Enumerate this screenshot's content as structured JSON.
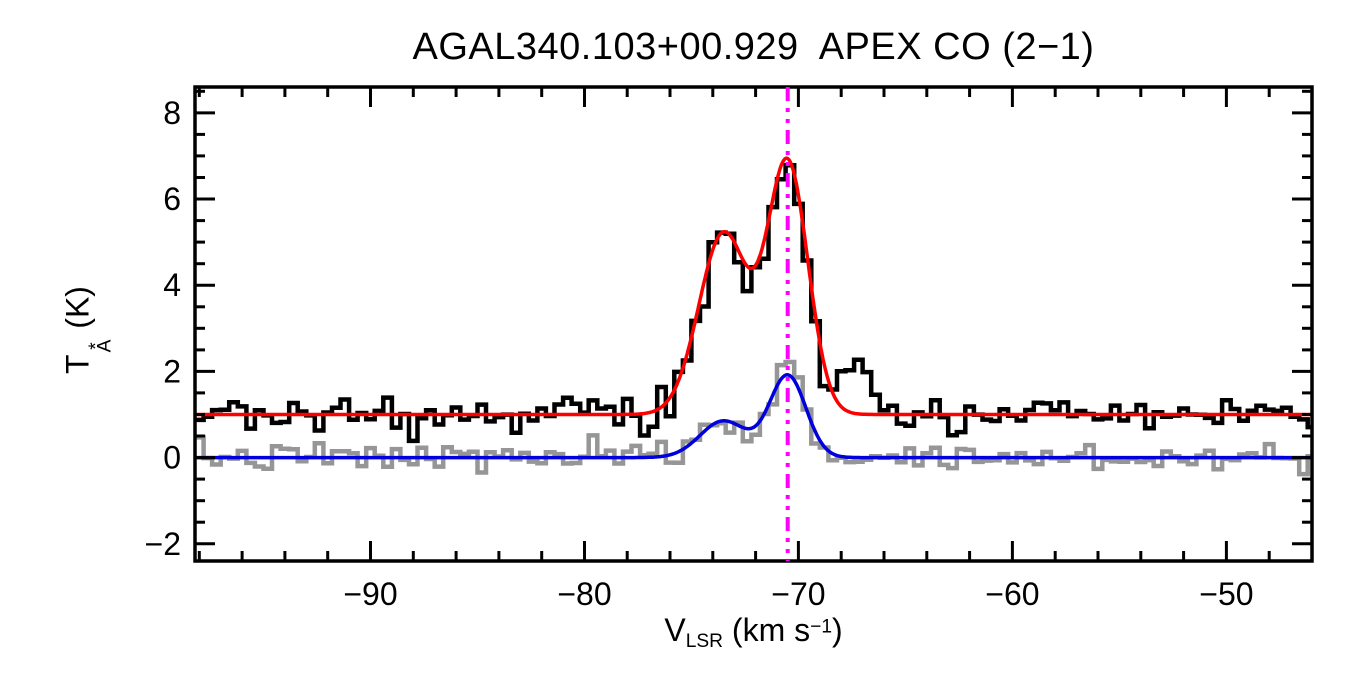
{
  "chart_data": {
    "type": "line",
    "title": "AGAL340.103+00.929  APEX CO (2−1)",
    "xlabel": "VLSR (km s−1)",
    "xlabel_parts": {
      "symbol": "V",
      "sub": "LSR",
      "unit_pre": " (km s",
      "sup": "−1",
      "unit_post": ")"
    },
    "ylabel": "TA* (K)",
    "ylabel_parts": {
      "symbol": "T",
      "sup": "*",
      "sub": "A",
      "unit": " (K)"
    },
    "xlim": [
      -98.2,
      -46.0
    ],
    "ylim": [
      -2.4,
      8.6
    ],
    "x_major_ticks": [
      -90,
      -80,
      -70,
      -60,
      -50
    ],
    "x_minor_step": 2,
    "y_major_ticks": [
      -2,
      0,
      2,
      4,
      6,
      8
    ],
    "y_minor_step": 0.5,
    "axis_color": "#000000",
    "marker_velocity": -70.5,
    "marker_color": "#ff00ff",
    "channel_width_kms": 0.4,
    "series": [
      {
        "name": "observed-spectrum",
        "style": "histogram",
        "color": "#000000",
        "line_width": 4.5,
        "baseline": 1.0,
        "noise_sigma": 0.22,
        "noise_seed": 20,
        "components": [
          {
            "center": -73.5,
            "amplitude": 4.2,
            "sigma": 1.1
          },
          {
            "center": -70.5,
            "amplitude": 5.8,
            "sigma": 0.9
          },
          {
            "center": -67.4,
            "amplitude": 1.05,
            "sigma": 0.8
          }
        ]
      },
      {
        "name": "smoothed-spectrum",
        "style": "histogram",
        "color": "#969696",
        "line_width": 4.5,
        "baseline": 0.0,
        "noise_sigma": 0.17,
        "noise_seed": 7,
        "components": [
          {
            "center": -73.5,
            "amplitude": 0.85,
            "sigma": 1.1
          },
          {
            "center": -70.5,
            "amplitude": 1.9,
            "sigma": 0.85
          }
        ]
      },
      {
        "name": "observed-gaussian-fit",
        "style": "smooth",
        "color": "#ff0000",
        "line_width": 3.5,
        "baseline": 1.0,
        "noise_sigma": 0,
        "noise_seed": 0,
        "components": [
          {
            "center": -73.5,
            "amplitude": 4.2,
            "sigma": 1.15
          },
          {
            "center": -70.5,
            "amplitude": 5.8,
            "sigma": 0.95
          }
        ]
      },
      {
        "name": "smoothed-gaussian-fit",
        "style": "smooth",
        "color": "#0000dd",
        "line_width": 3.5,
        "baseline": 0.0,
        "noise_sigma": 0,
        "noise_seed": 0,
        "components": [
          {
            "center": -73.5,
            "amplitude": 0.85,
            "sigma": 1.1
          },
          {
            "center": -70.5,
            "amplitude": 1.9,
            "sigma": 0.85
          }
        ]
      }
    ]
  }
}
